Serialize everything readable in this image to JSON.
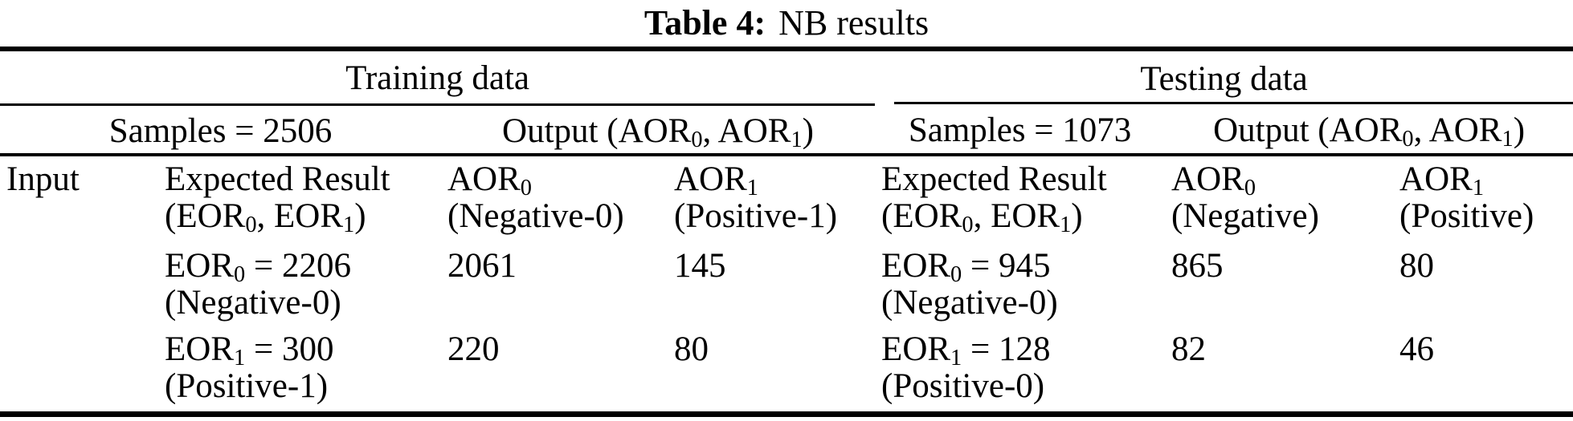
{
  "title": {
    "label": "Table 4:",
    "caption": "NB results"
  },
  "groups": {
    "training": {
      "title": "Training data",
      "samples": "Samples = 2506",
      "output": "Output (AOR~0~, AOR~1~)"
    },
    "testing": {
      "title": "Testing data",
      "samples": "Samples = 1073",
      "output": "Output (AOR~0~, AOR~1~)"
    }
  },
  "header": {
    "input": "Input",
    "train_expected_1": "Expected Result",
    "train_expected_2": "(EOR~0~, EOR~1~)",
    "train_aor0_1": "AOR~0~",
    "train_aor0_2": "(Negative-0)",
    "train_aor1_1": "AOR~1~",
    "train_aor1_2": "(Positive-1)",
    "test_expected_1": "Expected Result",
    "test_expected_2": "(EOR~0~, EOR~1~)",
    "test_aor0_1": "AOR~0~",
    "test_aor0_2": "(Negative)",
    "test_aor1_1": "AOR~1~",
    "test_aor1_2": "(Positive)"
  },
  "rows": [
    {
      "train_expected_1": "EOR~0~ = 2206",
      "train_expected_2": "(Negative-0)",
      "train_aor0": "2061",
      "train_aor1": "145",
      "test_expected_1": "EOR~0~ = 945",
      "test_expected_2": "(Negative-0)",
      "test_aor0": "865",
      "test_aor1": "80"
    },
    {
      "train_expected_1": "EOR~1~ = 300",
      "train_expected_2": "(Positive-1)",
      "train_aor0": "220",
      "train_aor1": "80",
      "test_expected_1": "EOR~1~ = 128",
      "test_expected_2": "(Positive-0)",
      "test_aor0": "82",
      "test_aor1": "46"
    }
  ],
  "colors": {
    "text": "#000000",
    "rule": "#000000",
    "background": "#ffffff"
  },
  "chart_data": {
    "type": "table",
    "title": "Table 4: NB results",
    "training": {
      "samples": 2506,
      "output_columns": [
        "AOR0 (Negative-0)",
        "AOR1 (Positive-1)"
      ],
      "rows": [
        {
          "label": "EOR0 = 2206 (Negative-0)",
          "values": [
            2061,
            145
          ]
        },
        {
          "label": "EOR1 = 300 (Positive-1)",
          "values": [
            220,
            80
          ]
        }
      ]
    },
    "testing": {
      "samples": 1073,
      "output_columns": [
        "AOR0 (Negative)",
        "AOR1 (Positive)"
      ],
      "rows": [
        {
          "label": "EOR0 = 945 (Negative-0)",
          "values": [
            865,
            80
          ]
        },
        {
          "label": "EOR1 = 128 (Positive-0)",
          "values": [
            82,
            46
          ]
        }
      ]
    }
  }
}
